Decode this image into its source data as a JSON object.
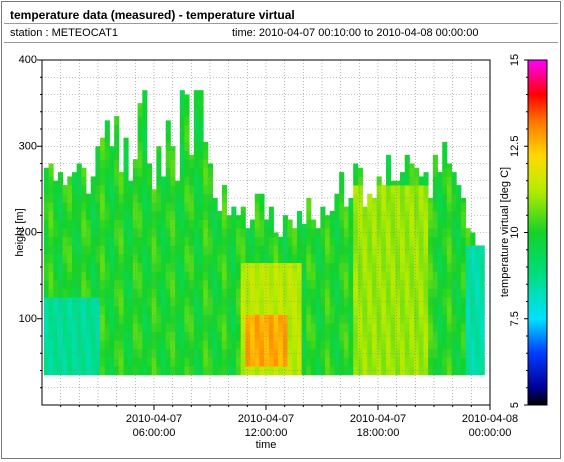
{
  "header": {
    "title": "temperature data (measured) - temperature virtual",
    "station_label": "station : METEOCAT1",
    "time_label": "time: 2010-04-07 00:10:00 to 2010-04-08 00:00:00"
  },
  "chart_data": {
    "type": "heatmap",
    "xlabel": "time",
    "ylabel": "height [m]",
    "colorbar_label": "temperature virtual [deg C]",
    "xlim_hours": [
      0,
      24
    ],
    "ylim": [
      0,
      400
    ],
    "x_ticks": [
      {
        "hour": 6,
        "line1": "2010-04-07",
        "line2": "06:00:00"
      },
      {
        "hour": 12,
        "line1": "2010-04-07",
        "line2": "12:00:00"
      },
      {
        "hour": 18,
        "line1": "2010-04-07",
        "line2": "18:00:00"
      },
      {
        "hour": 24,
        "line1": "2010-04-08",
        "line2": "00:00:00"
      }
    ],
    "y_ticks": [
      "100",
      "200",
      "300",
      "400"
    ],
    "y_tick_values": [
      100,
      200,
      300,
      400
    ],
    "colorbar_ticks": [
      "5",
      "7.5",
      "10",
      "12.5",
      "15"
    ],
    "colorbar_tick_values": [
      5,
      7.5,
      10,
      12.5,
      15
    ],
    "color_range": [
      5,
      15
    ],
    "grid": true,
    "data_top_height_m": [
      275,
      280,
      260,
      270,
      255,
      265,
      270,
      280,
      275,
      245,
      265,
      300,
      310,
      330,
      300,
      335,
      270,
      310,
      260,
      285,
      350,
      365,
      280,
      250,
      300,
      265,
      330,
      300,
      260,
      365,
      360,
      290,
      365,
      365,
      305,
      280,
      240,
      225,
      255,
      220,
      230,
      220,
      230,
      205,
      215,
      245,
      245,
      215,
      230,
      200,
      195,
      220,
      215,
      205,
      225,
      210,
      240,
      215,
      205,
      230,
      220,
      225,
      245,
      270,
      230,
      240,
      280,
      275,
      230,
      245,
      240,
      265,
      255,
      290,
      260,
      260,
      270,
      290,
      280,
      275,
      265,
      270,
      240,
      290,
      270,
      305,
      280,
      270,
      255,
      240,
      205,
      200,
      185,
      185
    ],
    "data_bottom_height_m": 35,
    "data_start_hour": 0.1,
    "data_end_hour": 23.7,
    "features": [
      {
        "desc": "cool near-surface layer",
        "hours": [
          0.1,
          3.0
        ],
        "heights": [
          35,
          120
        ],
        "temp_c": 8.6
      },
      {
        "desc": "warm surface layer",
        "hours": [
          10.6,
          13.8
        ],
        "heights": [
          35,
          160
        ],
        "temp_c": 11.3
      },
      {
        "desc": "warmest core",
        "hours": [
          11.0,
          13.1
        ],
        "heights": [
          50,
          100
        ],
        "temp_c": 12.7
      },
      {
        "desc": "warm late-afternoon column",
        "hours": [
          16.6,
          20.6
        ],
        "heights": [
          35,
          250
        ],
        "temp_c": 11.0
      },
      {
        "desc": "cool late-evening column",
        "hours": [
          22.7,
          23.7
        ],
        "heights": [
          35,
          180
        ],
        "temp_c": 8.4
      }
    ]
  }
}
